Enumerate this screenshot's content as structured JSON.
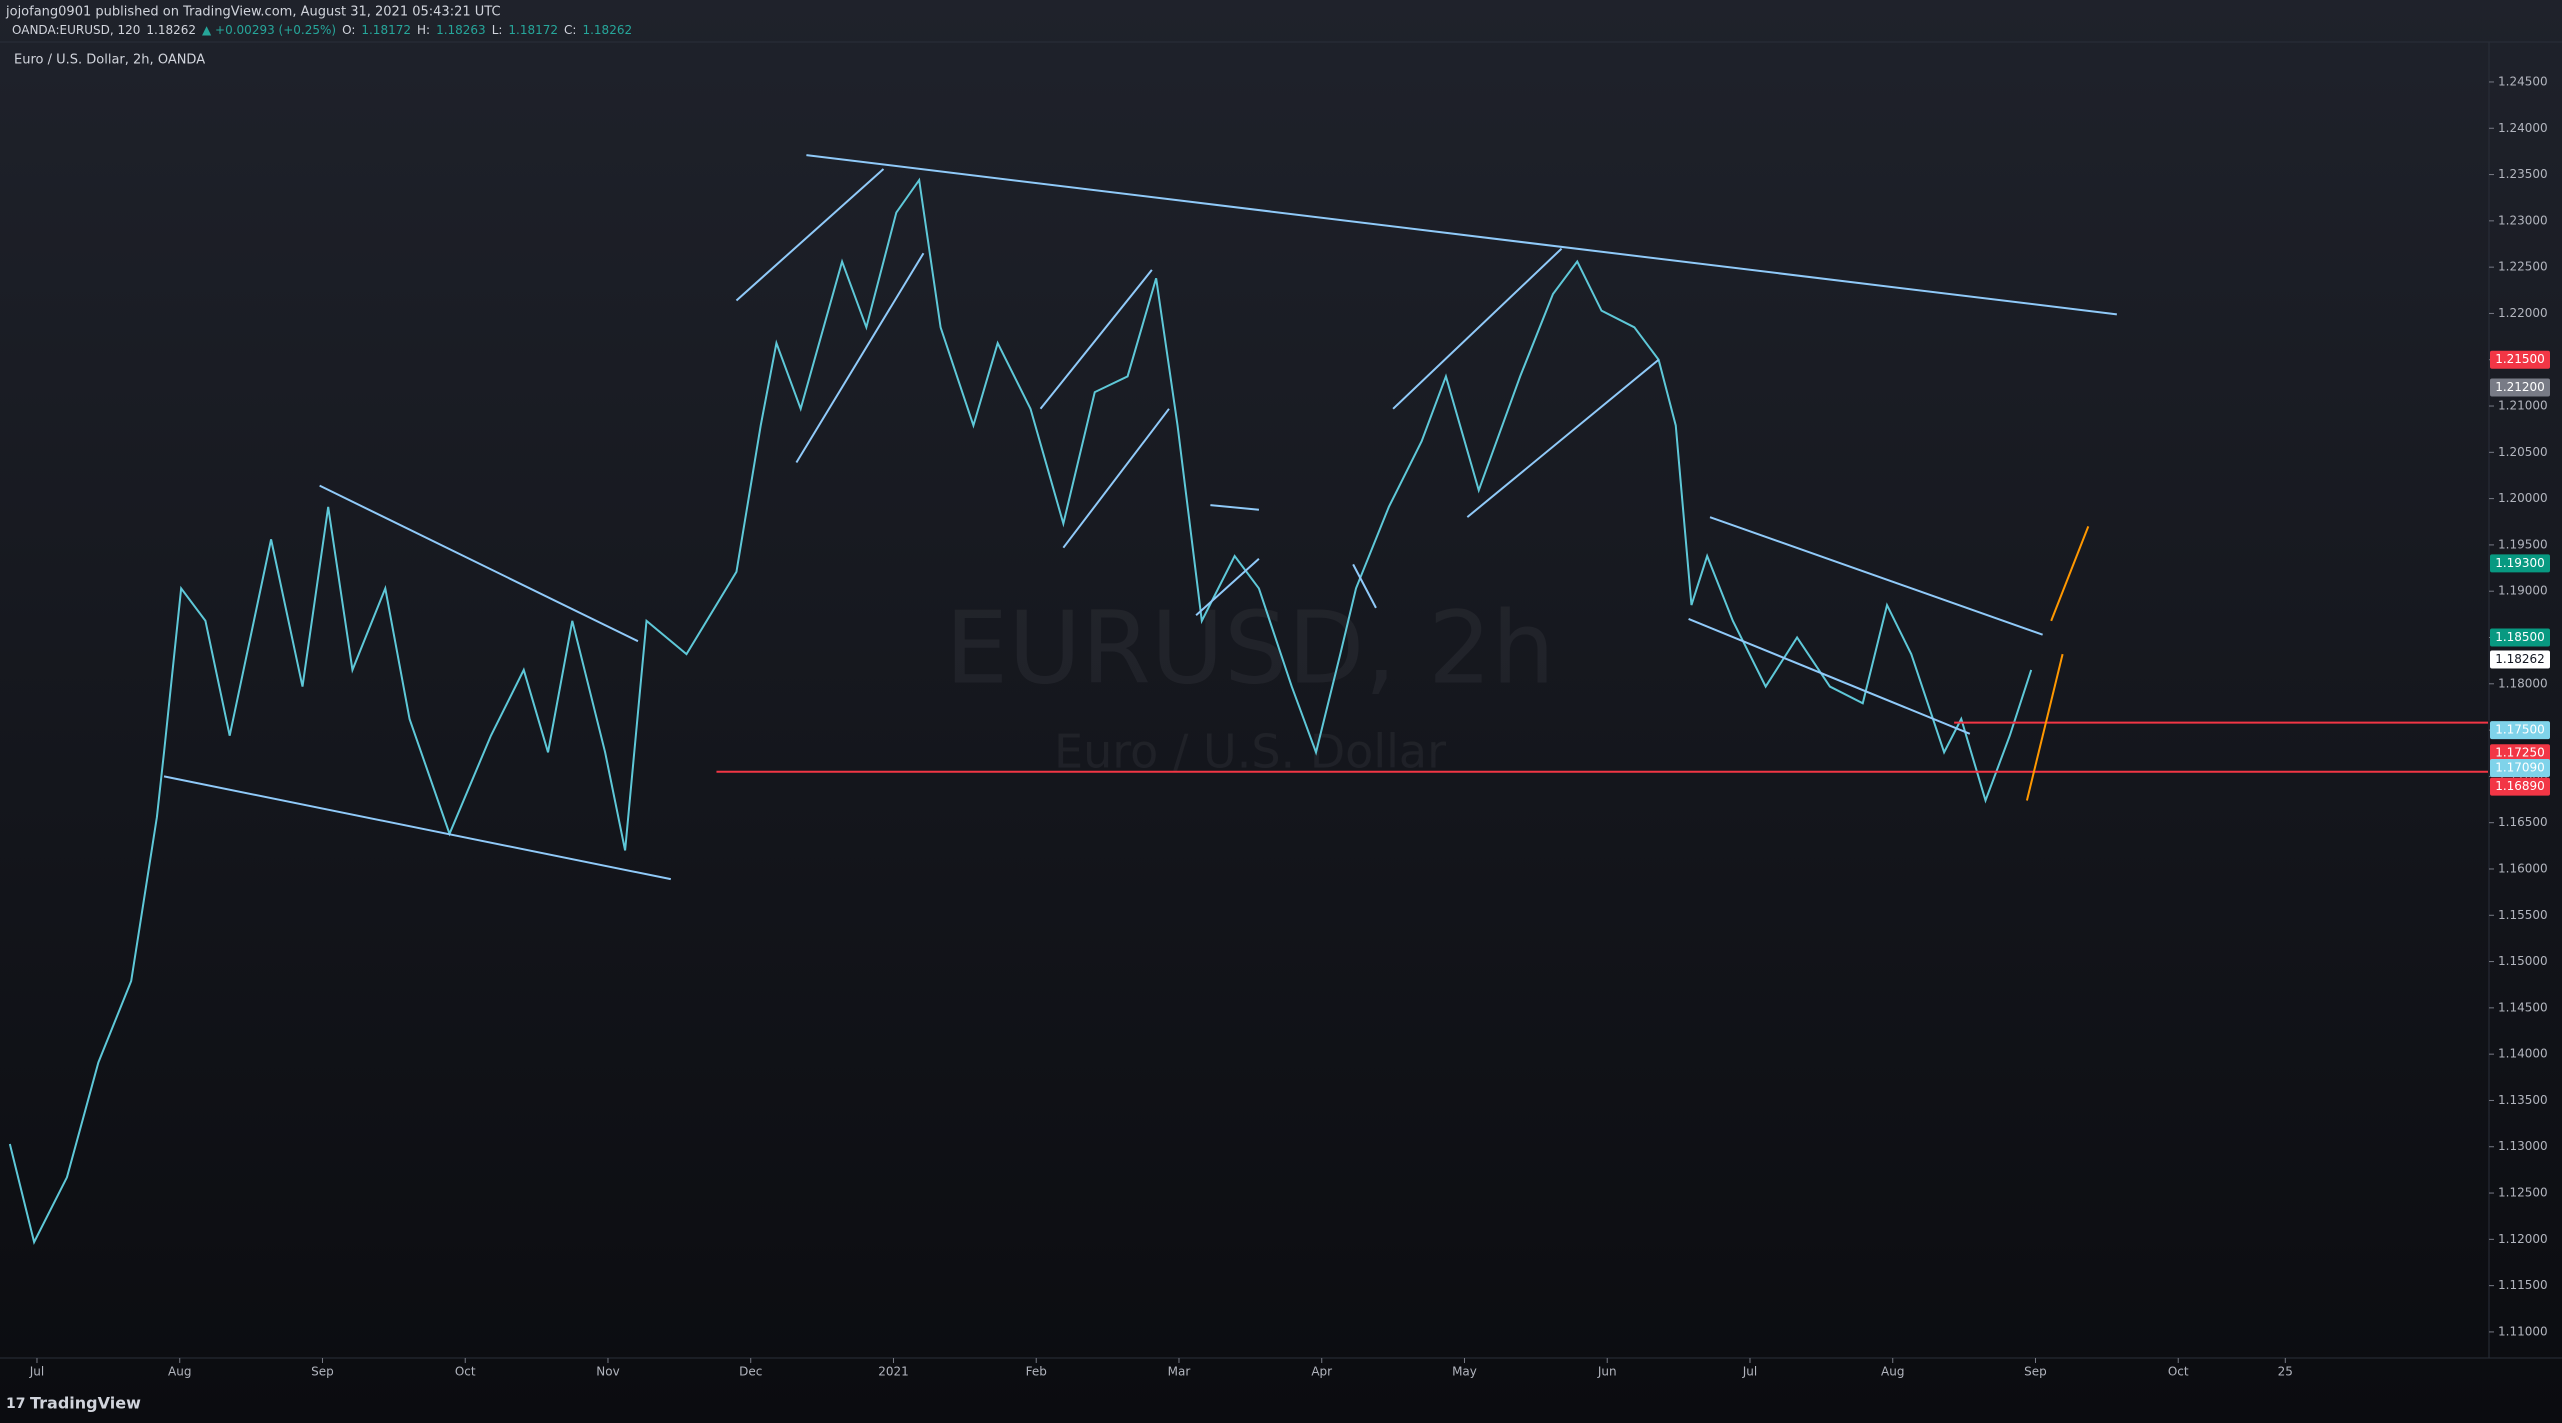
{
  "chart_data": {
    "type": "line",
    "header": {
      "author_line": "jojofang0901 published on TradingView.com, August 31, 2021 05:43:21 UTC",
      "symbol": "OANDA:EURUSD, 120",
      "last": "1.18262",
      "change": "▲ +0.00293 (+0.25%)",
      "ohlc": [
        "O:",
        "1.18172",
        "H:",
        "1.18263",
        "L:",
        "1.18172",
        "C:",
        "1.18262"
      ]
    },
    "title": "Euro / U.S. Dollar, 2h, OANDA",
    "watermark": "EURUSD, 2h",
    "watermark_subtitle": "Euro / U.S. Dollar",
    "footer": "TradingView",
    "series": [
      {
        "name": "EURUSD",
        "color": "#5ec8d8",
        "x": [
          -0.19,
          -0.02,
          0.21,
          0.43,
          0.66,
          0.84,
          0.89,
          1.01,
          1.18,
          1.35,
          1.64,
          1.86,
          2.04,
          2.21,
          2.44,
          2.61,
          2.89,
          3.18,
          3.41,
          3.58,
          3.75,
          3.98,
          4.12,
          4.27,
          4.55,
          4.9,
          5.07,
          5.18,
          5.35,
          5.64,
          5.81,
          6.02,
          6.18,
          6.33,
          6.56,
          6.73,
          6.96,
          7.19,
          7.41,
          7.64,
          7.84,
          7.99,
          8.16,
          8.39,
          8.56,
          8.79,
          8.96,
          9.13,
          9.24,
          9.47,
          9.7,
          9.87,
          10.1,
          10.39,
          10.62,
          10.79,
          10.96,
          11.19,
          11.36,
          11.48,
          11.59,
          11.7,
          11.88,
          12.11,
          12.33,
          12.56,
          12.79,
          12.96,
          13.13,
          13.36,
          13.48,
          13.65,
          13.82,
          13.97
        ],
        "values": [
          1.1303,
          1.1197,
          1.1267,
          1.1391,
          1.1479,
          1.1656,
          1.1726,
          1.1903,
          1.1868,
          1.1744,
          1.1956,
          1.1797,
          1.1991,
          1.1815,
          1.1903,
          1.1762,
          1.1638,
          1.1744,
          1.1815,
          1.1726,
          1.1868,
          1.1726,
          1.162,
          1.1868,
          1.1832,
          1.1921,
          1.2079,
          1.2168,
          1.2097,
          1.2256,
          1.2185,
          1.2309,
          1.2344,
          1.2185,
          1.2079,
          1.2168,
          1.2097,
          1.1973,
          1.2115,
          1.2132,
          1.2238,
          1.2079,
          1.1868,
          1.1938,
          1.1903,
          1.1797,
          1.1726,
          1.1832,
          1.1903,
          1.1991,
          1.2062,
          1.2132,
          1.2009,
          1.2132,
          1.2221,
          1.2256,
          1.2203,
          1.2185,
          1.215,
          1.2079,
          1.1885,
          1.1938,
          1.1868,
          1.1797,
          1.185,
          1.1797,
          1.1779,
          1.1885,
          1.1832,
          1.1726,
          1.1762,
          1.1674,
          1.1744,
          1.1815
        ]
      }
    ],
    "xlim": [
      -0.21,
      17.17
    ],
    "xticks": [
      {
        "value": 0,
        "label": "Jul"
      },
      {
        "value": 1,
        "label": "Aug"
      },
      {
        "value": 2,
        "label": "Sep"
      },
      {
        "value": 3,
        "label": "Oct"
      },
      {
        "value": 4,
        "label": "Nov"
      },
      {
        "value": 5,
        "label": "Dec"
      },
      {
        "value": 6,
        "label": "2021"
      },
      {
        "value": 7,
        "label": "Feb"
      },
      {
        "value": 8,
        "label": "Mar"
      },
      {
        "value": 9,
        "label": "Apr"
      },
      {
        "value": 10,
        "label": "May"
      },
      {
        "value": 11,
        "label": "Jun"
      },
      {
        "value": 12,
        "label": "Jul"
      },
      {
        "value": 13,
        "label": "Aug"
      },
      {
        "value": 14,
        "label": "Sep"
      },
      {
        "value": 15,
        "label": "Oct"
      },
      {
        "value": 15.75,
        "label": "25"
      }
    ],
    "ylim": [
      1.1074,
      1.2491
    ],
    "yticks": [
      {
        "value": 1.11,
        "label": "1.11000"
      },
      {
        "value": 1.115,
        "label": "1.11500"
      },
      {
        "value": 1.12,
        "label": "1.12000"
      },
      {
        "value": 1.125,
        "label": "1.12500"
      },
      {
        "value": 1.13,
        "label": "1.13000"
      },
      {
        "value": 1.135,
        "label": "1.13500"
      },
      {
        "value": 1.14,
        "label": "1.14000"
      },
      {
        "value": 1.145,
        "label": "1.14500"
      },
      {
        "value": 1.15,
        "label": "1.15000"
      },
      {
        "value": 1.155,
        "label": "1.15500"
      },
      {
        "value": 1.16,
        "label": "1.16000"
      },
      {
        "value": 1.165,
        "label": "1.16500"
      },
      {
        "value": 1.17,
        "label": "1.17000"
      },
      {
        "value": 1.175,
        "label": "1.17500"
      },
      {
        "value": 1.18,
        "label": "1.18000"
      },
      {
        "value": 1.185,
        "label": "1.18500"
      },
      {
        "value": 1.19,
        "label": "1.19000"
      },
      {
        "value": 1.195,
        "label": "1.19500"
      },
      {
        "value": 1.2,
        "label": "1.20000"
      },
      {
        "value": 1.205,
        "label": "1.20500"
      },
      {
        "value": 1.21,
        "label": "1.21000"
      },
      {
        "value": 1.215,
        "label": "1.21500"
      },
      {
        "value": 1.22,
        "label": "1.22000"
      },
      {
        "value": 1.225,
        "label": "1.22500"
      },
      {
        "value": 1.23,
        "label": "1.23000"
      },
      {
        "value": 1.235,
        "label": "1.23500"
      },
      {
        "value": 1.24,
        "label": "1.24000"
      },
      {
        "value": 1.245,
        "label": "1.24500"
      }
    ],
    "price_labels": [
      {
        "value": 1.215,
        "label": "1.21500",
        "color": "#f23645"
      },
      {
        "value": 1.212,
        "label": "1.21200",
        "color": "#787b86"
      },
      {
        "value": 1.193,
        "label": "1.19300",
        "color": "#089981"
      },
      {
        "value": 1.185,
        "label": "1.18500",
        "color": "#089981"
      },
      {
        "value": 1.18262,
        "label": "1.18262",
        "color": "#ffffff"
      },
      {
        "value": 1.175,
        "label": "1.17500",
        "color": "#7fd3ea"
      },
      {
        "value": 1.1725,
        "label": "1.17250",
        "color": "#f23645"
      },
      {
        "value": 1.1709,
        "label": "1.17090",
        "color": "#7fd3ea"
      },
      {
        "value": 1.1689,
        "label": "1.16890",
        "color": "#f23645"
      }
    ],
    "trendlines": [
      {
        "x": [
          0.89,
          4.44
        ],
        "y": [
          1.17,
          1.1589
        ],
        "color": "#90caf9"
      },
      {
        "x": [
          1.98,
          4.21
        ],
        "y": [
          1.2014,
          1.1846
        ],
        "color": "#90caf9"
      },
      {
        "x": [
          5.39,
          14.57
        ],
        "y": [
          1.2371,
          1.2199
        ],
        "color": "#90caf9"
      },
      {
        "x": [
          4.9,
          5.93
        ],
        "y": [
          1.2214,
          1.2356
        ],
        "color": "#90caf9"
      },
      {
        "x": [
          5.32,
          6.21
        ],
        "y": [
          1.2039,
          1.2265
        ],
        "color": "#90caf9"
      },
      {
        "x": [
          7.03,
          7.81
        ],
        "y": [
          1.2097,
          1.2247
        ],
        "color": "#90caf9"
      },
      {
        "x": [
          7.19,
          7.93
        ],
        "y": [
          1.1947,
          1.2097
        ],
        "color": "#90caf9"
      },
      {
        "x": [
          8.22,
          8.56
        ],
        "y": [
          1.1993,
          1.1988
        ],
        "color": "#90caf9"
      },
      {
        "x": [
          8.12,
          8.56
        ],
        "y": [
          1.1874,
          1.1935
        ],
        "color": "#90caf9"
      },
      {
        "x": [
          9.22,
          9.38
        ],
        "y": [
          1.1929,
          1.1882
        ],
        "color": "#90caf9"
      },
      {
        "x": [
          9.5,
          10.68
        ],
        "y": [
          1.2097,
          1.227
        ],
        "color": "#90caf9"
      },
      {
        "x": [
          10.02,
          11.36
        ],
        "y": [
          1.198,
          1.215
        ],
        "color": "#90caf9"
      },
      {
        "x": [
          11.72,
          14.05
        ],
        "y": [
          1.198,
          1.1853
        ],
        "color": "#90caf9"
      },
      {
        "x": [
          11.57,
          13.54
        ],
        "y": [
          1.187,
          1.1746
        ],
        "color": "#90caf9"
      },
      {
        "x": [
          4.76,
          17.17
        ],
        "y": [
          1.1705,
          1.1705
        ],
        "color": "#f23645"
      },
      {
        "x": [
          13.43,
          17.17
        ],
        "y": [
          1.1758,
          1.1758
        ],
        "color": "#f23645"
      },
      {
        "x": [
          13.94,
          14.19
        ],
        "y": [
          1.1674,
          1.1832
        ],
        "color": "#ff9800"
      },
      {
        "x": [
          14.11,
          14.37
        ],
        "y": [
          1.1868,
          1.197
        ],
        "color": "#ff9800"
      }
    ]
  }
}
